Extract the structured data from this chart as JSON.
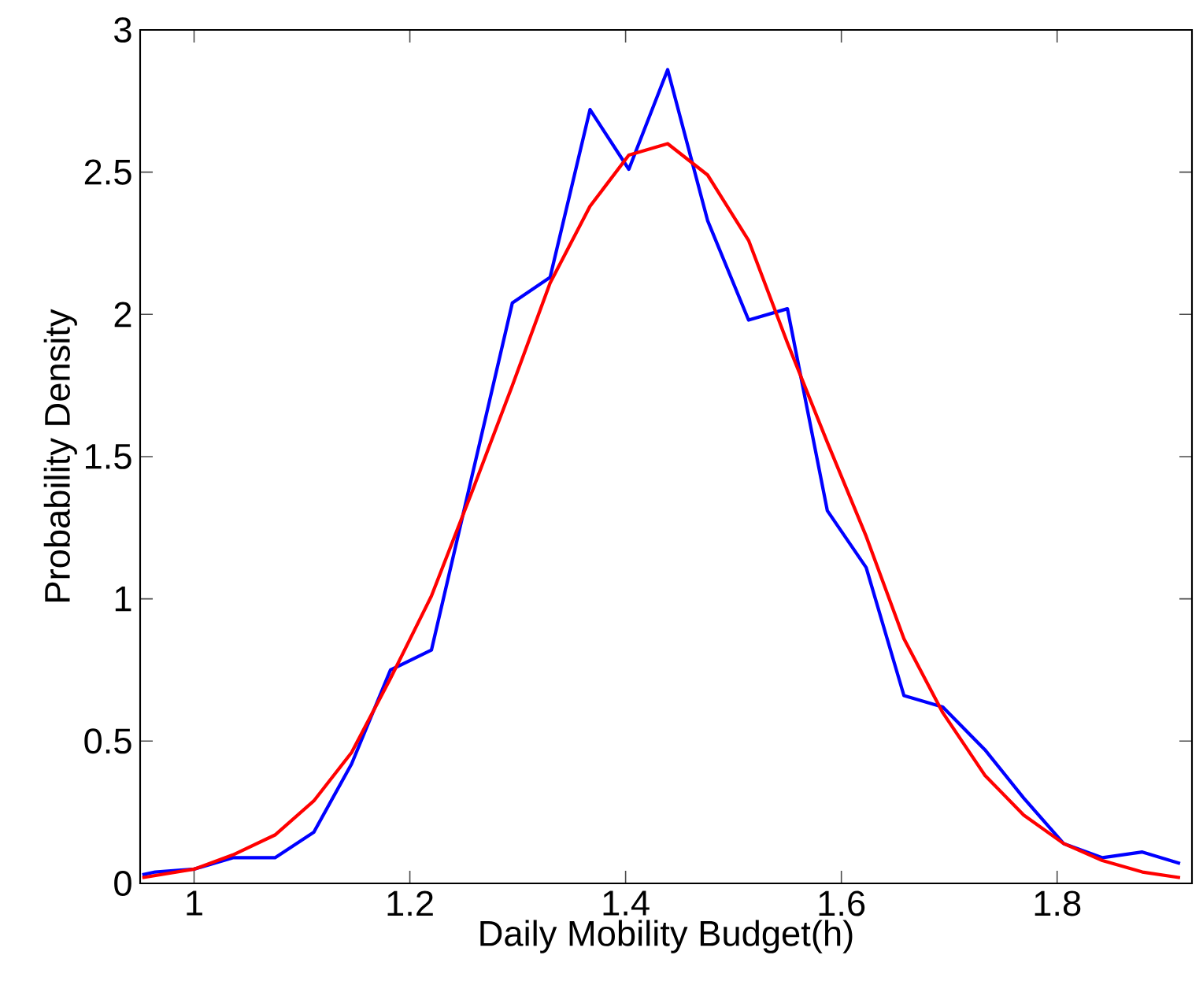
{
  "chart_data": {
    "type": "line",
    "xlabel": "Daily Mobility Budget(h)",
    "ylabel": "Probability Density",
    "xlim": [
      0.95,
      1.925
    ],
    "ylim": [
      0,
      3
    ],
    "xticks": [
      1,
      1.2,
      1.4,
      1.6,
      1.8
    ],
    "yticks": [
      0,
      0.5,
      1,
      1.5,
      2,
      2.5,
      3
    ],
    "series": [
      {
        "color": "#0000ff",
        "x": [
          0.952,
          0.964,
          1.0,
          1.036,
          1.075,
          1.111,
          1.146,
          1.182,
          1.22,
          1.295,
          1.33,
          1.367,
          1.403,
          1.439,
          1.476,
          1.514,
          1.55,
          1.587,
          1.623,
          1.658,
          1.694,
          1.733,
          1.769,
          1.806,
          1.842,
          1.879,
          1.914
        ],
        "values": [
          0.03,
          0.04,
          0.05,
          0.09,
          0.09,
          0.18,
          0.42,
          0.75,
          0.82,
          2.04,
          2.13,
          2.72,
          2.51,
          2.86,
          2.33,
          1.98,
          2.02,
          1.31,
          1.11,
          0.66,
          0.62,
          0.47,
          0.3,
          0.14,
          0.09,
          0.11,
          0.07
        ]
      },
      {
        "color": "#ff0000",
        "x": [
          0.952,
          1.0,
          1.036,
          1.075,
          1.111,
          1.146,
          1.182,
          1.22,
          1.258,
          1.295,
          1.33,
          1.367,
          1.403,
          1.439,
          1.476,
          1.514,
          1.55,
          1.587,
          1.623,
          1.658,
          1.694,
          1.733,
          1.769,
          1.806,
          1.842,
          1.879,
          1.914
        ],
        "values": [
          0.02,
          0.05,
          0.1,
          0.17,
          0.29,
          0.46,
          0.72,
          1.01,
          1.38,
          1.75,
          2.11,
          2.38,
          2.56,
          2.6,
          2.49,
          2.26,
          1.9,
          1.55,
          1.22,
          0.86,
          0.6,
          0.38,
          0.24,
          0.14,
          0.08,
          0.04,
          0.02
        ]
      }
    ]
  }
}
